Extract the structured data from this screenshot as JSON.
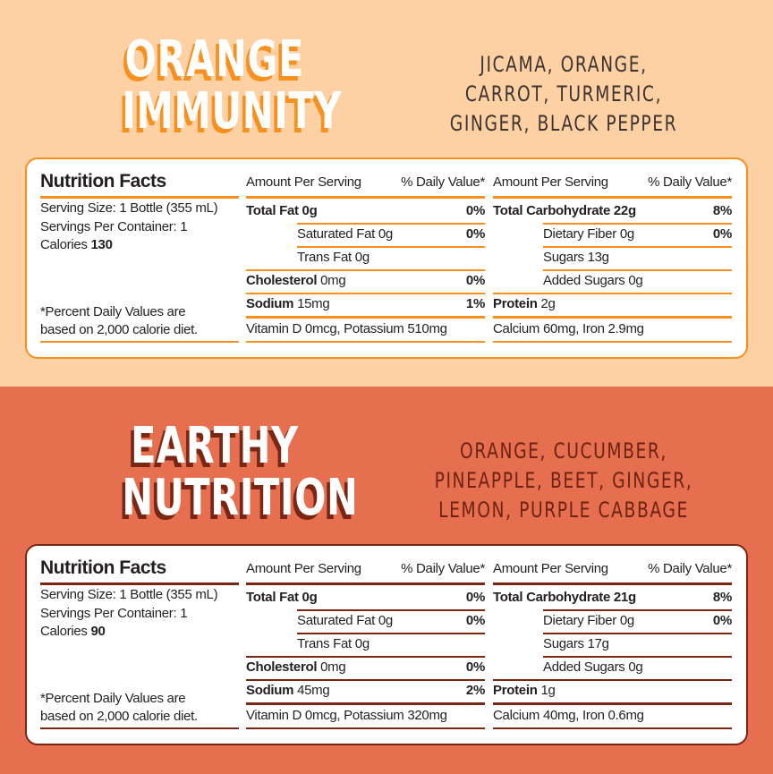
{
  "colors": {
    "top_bg": "#fdd1a3",
    "top_accent": "#f7901e",
    "bottom_bg": "#e66f50",
    "bottom_accent": "#7a2614"
  },
  "products": [
    {
      "title_line1": "ORANGE",
      "title_line2": "IMMUNITY",
      "ingredients": [
        "JICAMA, ORANGE,",
        "CARROT, TURMERIC,",
        "GINGER, BLACK PEPPER"
      ],
      "label": {
        "heading": "Nutrition Facts",
        "serving_size": "Serving Size: 1 Bottle (355 mL)",
        "servings_per_container": "Servings Per Container: 1",
        "calories_label": "Calories",
        "calories_value": "130",
        "footnote_1": "*Percent Daily Values are",
        "footnote_2": "based on 2,000 calorie diet.",
        "amount_header": "Amount Per Serving",
        "dv_header": "% Daily Value*",
        "mid_rows": [
          {
            "bold": "Total Fat 0g",
            "text": "",
            "dv": "0%"
          },
          {
            "bold": "",
            "text": "Saturated Fat 0g",
            "dv": "0%"
          },
          {
            "bold": "",
            "text": "Trans Fat 0g",
            "dv": ""
          },
          {
            "bold": "Cholesterol",
            "text": "0mg",
            "dv": "0%"
          },
          {
            "bold": "Sodium",
            "text": "15mg",
            "dv": "1%"
          }
        ],
        "right_rows": [
          {
            "bold": "Total Carbohydrate 22g",
            "text": "",
            "dv": "8%"
          },
          {
            "bold": "",
            "text": "Dietary Fiber 0g",
            "dv": "0%"
          },
          {
            "bold": "",
            "text": "Sugars 13g",
            "dv": ""
          },
          {
            "bold": "",
            "text": "Added Sugars 0g",
            "dv": ""
          },
          {
            "bold": "Protein",
            "text": "2g",
            "dv": ""
          }
        ],
        "mid_footer": "Vitamin D 0mcg, Potassium 510mg",
        "right_footer": "Calcium 60mg, Iron 2.9mg"
      }
    },
    {
      "title_line1": "EARTHY",
      "title_line2": "NUTRITION",
      "ingredients": [
        "ORANGE, CUCUMBER,",
        "PINEAPPLE, BEET, GINGER,",
        "LEMON, PURPLE CABBAGE"
      ],
      "label": {
        "heading": "Nutrition Facts",
        "serving_size": "Serving Size: 1 Bottle (355 mL)",
        "servings_per_container": "Servings Per Container: 1",
        "calories_label": "Calories",
        "calories_value": "90",
        "footnote_1": "*Percent Daily Values are",
        "footnote_2": "based on 2,000 calorie diet.",
        "amount_header": "Amount Per Serving",
        "dv_header": "% Daily Value*",
        "mid_rows": [
          {
            "bold": "Total Fat 0g",
            "text": "",
            "dv": "0%"
          },
          {
            "bold": "",
            "text": "Saturated Fat 0g",
            "dv": "0%"
          },
          {
            "bold": "",
            "text": "Trans Fat 0g",
            "dv": ""
          },
          {
            "bold": "Cholesterol",
            "text": "0mg",
            "dv": "0%"
          },
          {
            "bold": "Sodium",
            "text": "45mg",
            "dv": "2%"
          }
        ],
        "right_rows": [
          {
            "bold": "Total Carbohydrate 21g",
            "text": "",
            "dv": "8%"
          },
          {
            "bold": "",
            "text": "Dietary Fiber 0g",
            "dv": "0%"
          },
          {
            "bold": "",
            "text": "Sugars 17g",
            "dv": ""
          },
          {
            "bold": "",
            "text": "Added Sugars 0g",
            "dv": ""
          },
          {
            "bold": "Protein",
            "text": "1g",
            "dv": ""
          }
        ],
        "mid_footer": "Vitamin D 0mcg, Potassium 320mg",
        "right_footer": "Calcium 40mg, Iron 0.6mg"
      }
    }
  ]
}
